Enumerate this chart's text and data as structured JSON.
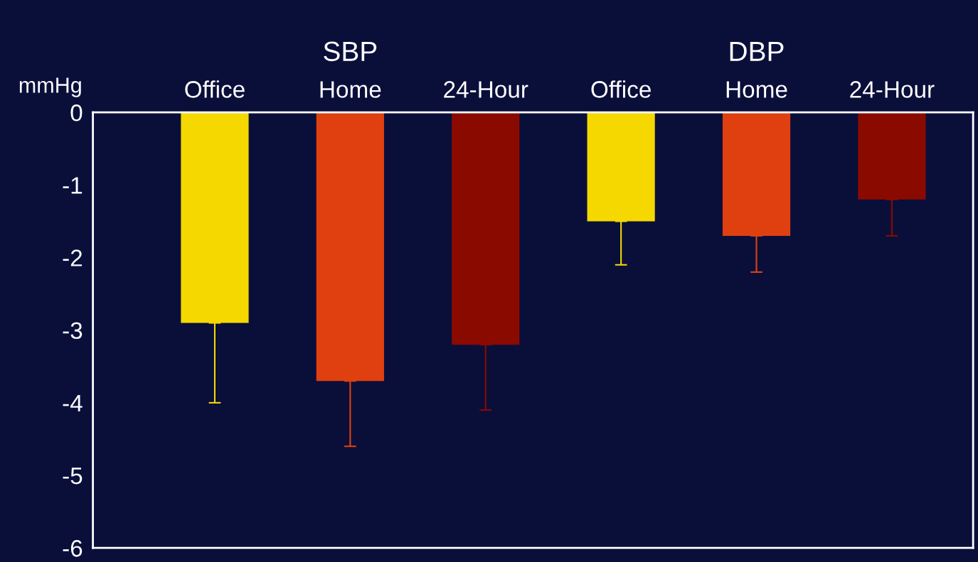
{
  "chart_data": {
    "type": "bar",
    "categories": [
      "Office",
      "Home",
      "24-Hour",
      "Office",
      "Home",
      "24-Hour"
    ],
    "values": [
      -2.9,
      -3.7,
      -3.2,
      -1.5,
      -1.7,
      -1.2
    ],
    "colors": [
      "#f5d800",
      "#e04010",
      "#8b0a00",
      "#f5d800",
      "#e04010",
      "#8b0a00"
    ],
    "errors": [
      [
        -4.0,
        -2.9
      ],
      [
        -4.6,
        -3.7
      ],
      [
        -4.1,
        -3.2
      ],
      [
        -2.1,
        -1.5
      ],
      [
        -2.2,
        -1.7
      ],
      [
        -1.7,
        -1.2
      ]
    ],
    "ylabel": "mmHg",
    "ylim": [
      -6,
      0
    ],
    "yticks": [
      -6,
      -5,
      -4,
      -3,
      -2,
      -1,
      0
    ],
    "annotations": [
      "SBP",
      "DBP"
    ],
    "grid": false,
    "legend": false
  }
}
